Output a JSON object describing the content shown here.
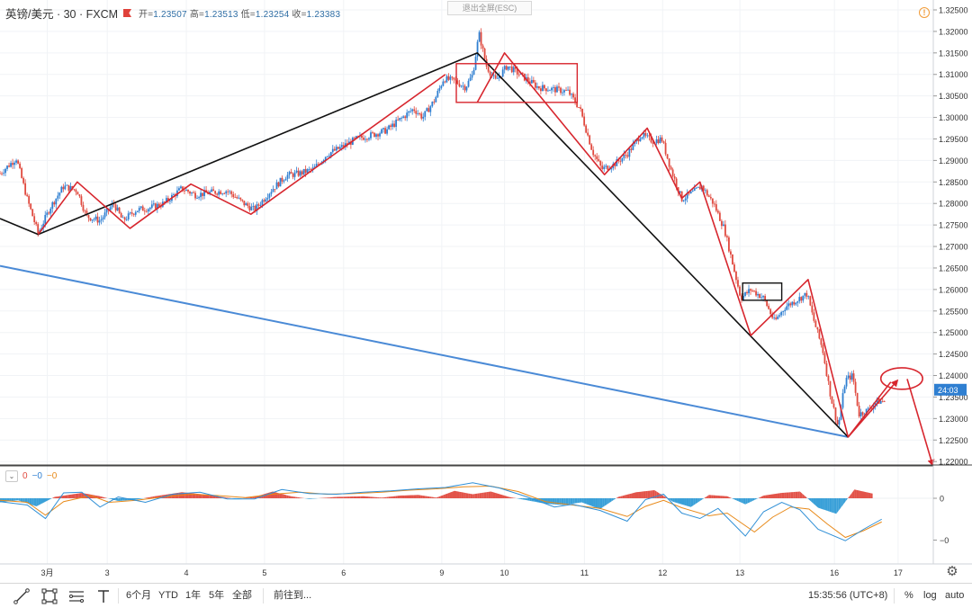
{
  "header": {
    "symbol": "英镑/美元 · 30 · FXCM",
    "open_label": "开=",
    "open": "1.23507",
    "high_label": "高=",
    "high": "1.23513",
    "low_label": "低=",
    "low": "1.23254",
    "close_label": "收=",
    "close": "1.23383",
    "exit_fullscreen": "退出全屏(ESC)",
    "warning_icon": "warning-icon"
  },
  "price_tag": "24:03",
  "indicator": {
    "v1": "0",
    "v2": "−0",
    "v3": "−0",
    "color1": "#e04a3f",
    "color2": "#2f7fd1",
    "color3": "#e88a1a"
  },
  "toolbar": {
    "tools": [
      "trendline-icon",
      "rectangle-icon",
      "fib-icon",
      "text-icon"
    ],
    "ranges": [
      "6个月",
      "YTD",
      "1年",
      "5年",
      "全部"
    ],
    "goto": "前往到...",
    "time": "15:35:56 (UTC+8)",
    "percent": "%",
    "log": "log",
    "auto": "auto"
  },
  "chart_data": {
    "type": "candlestick",
    "symbol": "GBP/USD",
    "interval": "30",
    "x_ticks": [
      "3月",
      "3",
      "4",
      "5",
      "6",
      "9",
      "10",
      "11",
      "12",
      "13",
      "16",
      "17"
    ],
    "y_ticks": [
      "1.32500",
      "1.32000",
      "1.31500",
      "1.31000",
      "1.30500",
      "1.30000",
      "1.29500",
      "1.29000",
      "1.28500",
      "1.28000",
      "1.27500",
      "1.27000",
      "1.26500",
      "1.26000",
      "1.25500",
      "1.25000",
      "1.24500",
      "1.24000",
      "1.23500",
      "1.23000",
      "1.22500",
      "1.22000"
    ],
    "ylim": [
      1.2192,
      1.3273
    ],
    "indicator_ticks": [
      "0",
      "−0"
    ],
    "colors": {
      "up": "#2f7fd1",
      "down": "#e04a3f",
      "red_lines": "#d7262e",
      "black_lines": "#111111",
      "blue_line": "#4a8ad6"
    },
    "price_path": [
      [
        0.0,
        1.287
      ],
      [
        0.018,
        1.2905
      ],
      [
        0.03,
        1.281
      ],
      [
        0.042,
        1.273
      ],
      [
        0.055,
        1.279
      ],
      [
        0.07,
        1.284
      ],
      [
        0.085,
        1.283
      ],
      [
        0.095,
        1.277
      ],
      [
        0.11,
        1.276
      ],
      [
        0.125,
        1.28
      ],
      [
        0.135,
        1.276
      ],
      [
        0.15,
        1.2785
      ],
      [
        0.165,
        1.279
      ],
      [
        0.18,
        1.28
      ],
      [
        0.2,
        1.2835
      ],
      [
        0.215,
        1.282
      ],
      [
        0.23,
        1.2825
      ],
      [
        0.25,
        1.283
      ],
      [
        0.268,
        1.28
      ],
      [
        0.28,
        1.2785
      ],
      [
        0.298,
        1.283
      ],
      [
        0.315,
        1.2865
      ],
      [
        0.33,
        1.287
      ],
      [
        0.345,
        1.288
      ],
      [
        0.36,
        1.2915
      ],
      [
        0.375,
        1.293
      ],
      [
        0.392,
        1.295
      ],
      [
        0.41,
        1.296
      ],
      [
        0.425,
        1.297
      ],
      [
        0.44,
        1.2995
      ],
      [
        0.455,
        1.302
      ],
      [
        0.465,
        1.3
      ],
      [
        0.478,
        1.304
      ],
      [
        0.488,
        1.309
      ],
      [
        0.5,
        1.3085
      ],
      [
        0.512,
        1.307
      ],
      [
        0.52,
        1.31
      ],
      [
        0.527,
        1.3195
      ],
      [
        0.535,
        1.312
      ],
      [
        0.545,
        1.3085
      ],
      [
        0.558,
        1.312
      ],
      [
        0.575,
        1.3095
      ],
      [
        0.592,
        1.307
      ],
      [
        0.61,
        1.3065
      ],
      [
        0.625,
        1.306
      ],
      [
        0.638,
        1.302
      ],
      [
        0.652,
        1.292
      ],
      [
        0.662,
        1.288
      ],
      [
        0.675,
        1.289
      ],
      [
        0.69,
        1.2915
      ],
      [
        0.705,
        1.296
      ],
      [
        0.718,
        1.2945
      ],
      [
        0.728,
        1.295
      ],
      [
        0.738,
        1.288
      ],
      [
        0.75,
        1.281
      ],
      [
        0.762,
        1.2825
      ],
      [
        0.772,
        1.284
      ],
      [
        0.785,
        1.28
      ],
      [
        0.797,
        1.274
      ],
      [
        0.806,
        1.266
      ],
      [
        0.815,
        1.258
      ],
      [
        0.826,
        1.26
      ],
      [
        0.84,
        1.258
      ],
      [
        0.852,
        1.2525
      ],
      [
        0.864,
        1.256
      ],
      [
        0.876,
        1.2575
      ],
      [
        0.888,
        1.259
      ],
      [
        0.895,
        1.253
      ],
      [
        0.905,
        1.246
      ],
      [
        0.914,
        1.235
      ],
      [
        0.922,
        1.228
      ],
      [
        0.93,
        1.239
      ],
      [
        0.938,
        1.24
      ],
      [
        0.945,
        1.231
      ],
      [
        0.955,
        1.232
      ],
      [
        0.965,
        1.234
      ],
      [
        0.975,
        1.234
      ]
    ],
    "black_lines": [
      [
        [
          0.0,
          1.2765
        ],
        [
          0.042,
          1.2728
        ],
        [
          0.525,
          1.315
        ],
        [
          0.933,
          1.2257
        ]
      ]
    ],
    "blue_line": [
      [
        0.0,
        1.2655
      ],
      [
        0.933,
        1.2257
      ]
    ],
    "red_zigzags": [
      [
        [
          0.042,
          1.2728
        ],
        [
          0.085,
          1.285
        ],
        [
          0.143,
          1.2742
        ],
        [
          0.21,
          1.2845
        ],
        [
          0.276,
          1.2775
        ],
        [
          0.49,
          1.31
        ]
      ],
      [
        [
          0.525,
          1.3035
        ],
        [
          0.555,
          1.315
        ],
        [
          0.665,
          1.2867
        ],
        [
          0.712,
          1.2975
        ],
        [
          0.75,
          1.2812
        ],
        [
          0.77,
          1.285
        ],
        [
          0.826,
          1.2493
        ],
        [
          0.889,
          1.2623
        ],
        [
          0.933,
          1.2257
        ],
        [
          0.98,
          1.2385
        ]
      ]
    ],
    "rectangles": [
      {
        "x1": 0.502,
        "x2": 0.635,
        "y1": 1.3125,
        "y2": 1.3035,
        "color": "#d7262e"
      },
      {
        "x1": 0.817,
        "x2": 0.86,
        "y1": 1.2615,
        "y2": 1.2575,
        "color": "#111111"
      }
    ],
    "ellipse": {
      "cx": 0.992,
      "cy": 1.2393,
      "rx": 0.023,
      "ry": 0.0025,
      "color": "#d7262e"
    },
    "arrows": [
      {
        "from": [
          0.933,
          1.2257
        ],
        "to": [
          0.987,
          1.2388
        ]
      },
      {
        "from": [
          0.998,
          1.2392
        ],
        "to": [
          1.026,
          1.2192
        ]
      }
    ],
    "macd_histogram": [
      [
        0.0,
        -0.6
      ],
      [
        0.02,
        -0.3
      ],
      [
        0.04,
        -1.2
      ],
      [
        0.06,
        0.2
      ],
      [
        0.09,
        0.8
      ],
      [
        0.11,
        0.3
      ],
      [
        0.13,
        -0.4
      ],
      [
        0.15,
        -0.2
      ],
      [
        0.17,
        0.3
      ],
      [
        0.2,
        0.9
      ],
      [
        0.23,
        0.5
      ],
      [
        0.26,
        -0.1
      ],
      [
        0.28,
        0.2
      ],
      [
        0.3,
        1.0
      ],
      [
        0.32,
        0.3
      ],
      [
        0.34,
        -0.1
      ],
      [
        0.37,
        0.2
      ],
      [
        0.4,
        0.3
      ],
      [
        0.42,
        0.1
      ],
      [
        0.44,
        0.4
      ],
      [
        0.46,
        0.5
      ],
      [
        0.48,
        0.1
      ],
      [
        0.5,
        1.1
      ],
      [
        0.52,
        0.6
      ],
      [
        0.54,
        1.0
      ],
      [
        0.56,
        0.2
      ],
      [
        0.58,
        -0.3
      ],
      [
        0.6,
        -0.8
      ],
      [
        0.62,
        -1.0
      ],
      [
        0.64,
        -0.6
      ],
      [
        0.66,
        -1.6
      ],
      [
        0.68,
        0.2
      ],
      [
        0.7,
        0.9
      ],
      [
        0.72,
        1.2
      ],
      [
        0.74,
        -0.5
      ],
      [
        0.76,
        -1.3
      ],
      [
        0.78,
        0.5
      ],
      [
        0.8,
        0.3
      ],
      [
        0.82,
        -0.9
      ],
      [
        0.84,
        0.4
      ],
      [
        0.86,
        0.8
      ],
      [
        0.88,
        1.0
      ],
      [
        0.9,
        -1.4
      ],
      [
        0.92,
        -2.3
      ],
      [
        0.94,
        1.3
      ],
      [
        0.96,
        0.7
      ]
    ],
    "macd_line": [
      [
        0.0,
        -0.5
      ],
      [
        0.03,
        -1.0
      ],
      [
        0.05,
        -3.0
      ],
      [
        0.07,
        0.8
      ],
      [
        0.09,
        0.9
      ],
      [
        0.11,
        -1.3
      ],
      [
        0.13,
        0.2
      ],
      [
        0.16,
        -0.6
      ],
      [
        0.19,
        0.6
      ],
      [
        0.22,
        0.9
      ],
      [
        0.25,
        -0.1
      ],
      [
        0.28,
        -0.1
      ],
      [
        0.31,
        1.3
      ],
      [
        0.34,
        0.7
      ],
      [
        0.37,
        0.6
      ],
      [
        0.4,
        0.9
      ],
      [
        0.43,
        1.1
      ],
      [
        0.46,
        1.4
      ],
      [
        0.49,
        1.6
      ],
      [
        0.52,
        2.3
      ],
      [
        0.55,
        1.5
      ],
      [
        0.58,
        0.2
      ],
      [
        0.61,
        -1.3
      ],
      [
        0.63,
        -0.9
      ],
      [
        0.66,
        -1.8
      ],
      [
        0.69,
        -3.4
      ],
      [
        0.71,
        -0.2
      ],
      [
        0.73,
        0.6
      ],
      [
        0.75,
        -2.2
      ],
      [
        0.77,
        -3.0
      ],
      [
        0.79,
        -1.5
      ],
      [
        0.82,
        -5.6
      ],
      [
        0.84,
        -2.0
      ],
      [
        0.86,
        -0.6
      ],
      [
        0.88,
        -1.7
      ],
      [
        0.9,
        -4.6
      ],
      [
        0.93,
        -6.3
      ],
      [
        0.95,
        -4.6
      ],
      [
        0.97,
        -3.1
      ]
    ],
    "signal_line": [
      [
        0.0,
        -0.3
      ],
      [
        0.03,
        -0.6
      ],
      [
        0.05,
        -2.5
      ],
      [
        0.07,
        -0.5
      ],
      [
        0.1,
        0.4
      ],
      [
        0.12,
        -0.6
      ],
      [
        0.15,
        -0.3
      ],
      [
        0.18,
        0.2
      ],
      [
        0.21,
        0.6
      ],
      [
        0.24,
        0.4
      ],
      [
        0.27,
        0.1
      ],
      [
        0.3,
        0.6
      ],
      [
        0.33,
        0.9
      ],
      [
        0.36,
        0.6
      ],
      [
        0.39,
        0.7
      ],
      [
        0.42,
        0.9
      ],
      [
        0.45,
        1.2
      ],
      [
        0.48,
        1.4
      ],
      [
        0.51,
        1.7
      ],
      [
        0.54,
        1.8
      ],
      [
        0.57,
        1.0
      ],
      [
        0.6,
        -0.5
      ],
      [
        0.63,
        -1.0
      ],
      [
        0.66,
        -1.5
      ],
      [
        0.69,
        -2.7
      ],
      [
        0.71,
        -1.2
      ],
      [
        0.73,
        -0.3
      ],
      [
        0.75,
        -1.4
      ],
      [
        0.78,
        -2.6
      ],
      [
        0.8,
        -2.2
      ],
      [
        0.83,
        -5.0
      ],
      [
        0.85,
        -2.8
      ],
      [
        0.87,
        -1.3
      ],
      [
        0.89,
        -1.6
      ],
      [
        0.91,
        -3.8
      ],
      [
        0.93,
        -5.8
      ],
      [
        0.95,
        -4.8
      ],
      [
        0.97,
        -3.5
      ]
    ]
  }
}
